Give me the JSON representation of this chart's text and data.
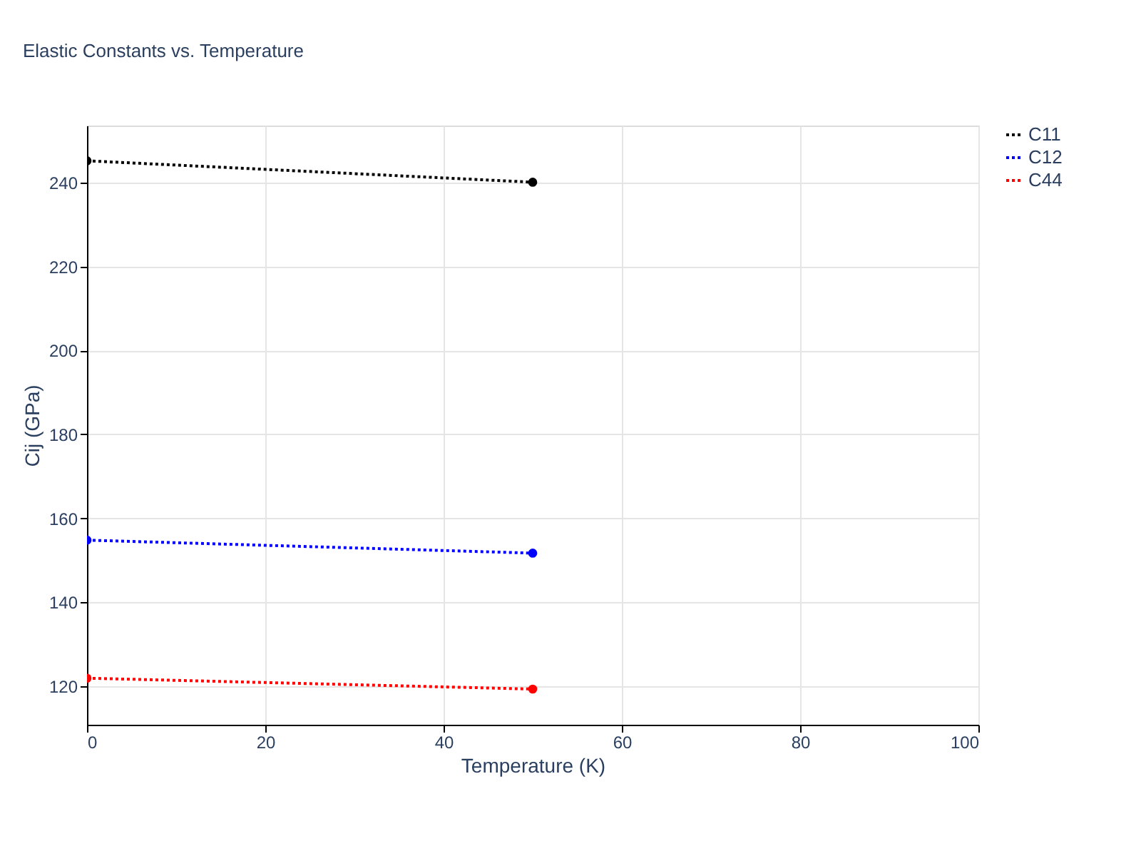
{
  "chart_data": {
    "type": "line",
    "title": "Elastic Constants vs. Temperature",
    "xlabel": "Temperature (K)",
    "ylabel": "Cij (GPa)",
    "x": [
      0,
      50
    ],
    "series": [
      {
        "name": "C11",
        "color": "#000000",
        "values": [
          245.2,
          240.1
        ]
      },
      {
        "name": "C12",
        "color": "#0000ff",
        "values": [
          154.8,
          151.7
        ]
      },
      {
        "name": "C44",
        "color": "#ff0000",
        "values": [
          121.9,
          119.3
        ]
      }
    ],
    "xlim": [
      0,
      100
    ],
    "xticks": [
      0,
      20,
      40,
      60,
      80,
      100
    ],
    "ylim": [
      110.8,
      253.6
    ],
    "yticks": [
      120,
      140,
      160,
      180,
      200,
      220,
      240
    ],
    "grid": true,
    "legend": "top right",
    "marker": "circle",
    "line_style": "dotted"
  }
}
